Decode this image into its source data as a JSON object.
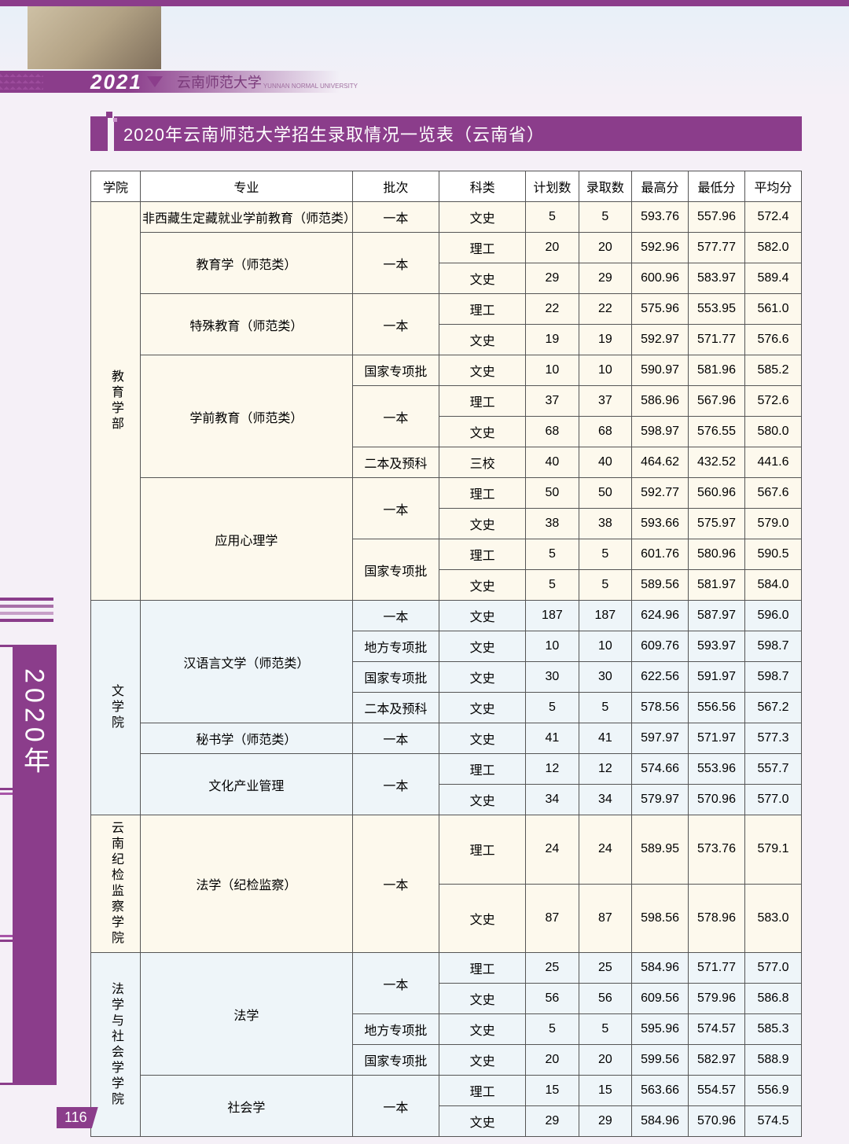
{
  "header": {
    "year_tag": "2021",
    "university": "云南师范大学",
    "sub": "YUNNAN NORMAL UNIVERSITY"
  },
  "title": "2020年云南师范大学招生录取情况一览表（云南省）",
  "side_label": "2020年",
  "page_number": "116",
  "columns": [
    "学院",
    "专业",
    "批次",
    "科类",
    "计划数",
    "录取数",
    "最高分",
    "最低分",
    "平均分"
  ],
  "bg": {
    "edu": "#fdf9ed",
    "lit": "#eef5f9",
    "disc": "#fdf9ed",
    "law": "#eef5f9"
  },
  "groups": [
    {
      "college": "教育学部",
      "bgkey": "edu",
      "majors": [
        {
          "name": "非西藏生定藏就业学前教育（师范类）",
          "batches": [
            {
              "batch": "一本",
              "cats": [
                {
                  "cat": "文史",
                  "plan": 5,
                  "admit": 5,
                  "max": "593.76",
                  "min": "557.96",
                  "avg": "572.4"
                }
              ]
            }
          ]
        },
        {
          "name": "教育学（师范类）",
          "batches": [
            {
              "batch": "一本",
              "cats": [
                {
                  "cat": "理工",
                  "plan": 20,
                  "admit": 20,
                  "max": "592.96",
                  "min": "577.77",
                  "avg": "582.0"
                },
                {
                  "cat": "文史",
                  "plan": 29,
                  "admit": 29,
                  "max": "600.96",
                  "min": "583.97",
                  "avg": "589.4"
                }
              ]
            }
          ]
        },
        {
          "name": "特殊教育（师范类）",
          "batches": [
            {
              "batch": "一本",
              "cats": [
                {
                  "cat": "理工",
                  "plan": 22,
                  "admit": 22,
                  "max": "575.96",
                  "min": "553.95",
                  "avg": "561.0"
                },
                {
                  "cat": "文史",
                  "plan": 19,
                  "admit": 19,
                  "max": "592.97",
                  "min": "571.77",
                  "avg": "576.6"
                }
              ]
            }
          ]
        },
        {
          "name": "学前教育（师范类）",
          "batches": [
            {
              "batch": "国家专项批",
              "cats": [
                {
                  "cat": "文史",
                  "plan": 10,
                  "admit": 10,
                  "max": "590.97",
                  "min": "581.96",
                  "avg": "585.2"
                }
              ]
            },
            {
              "batch": "一本",
              "cats": [
                {
                  "cat": "理工",
                  "plan": 37,
                  "admit": 37,
                  "max": "586.96",
                  "min": "567.96",
                  "avg": "572.6"
                },
                {
                  "cat": "文史",
                  "plan": 68,
                  "admit": 68,
                  "max": "598.97",
                  "min": "576.55",
                  "avg": "580.0"
                }
              ]
            },
            {
              "batch": "二本及预科",
              "cats": [
                {
                  "cat": "三校",
                  "plan": 40,
                  "admit": 40,
                  "max": "464.62",
                  "min": "432.52",
                  "avg": "441.6"
                }
              ]
            }
          ]
        },
        {
          "name": "应用心理学",
          "batches": [
            {
              "batch": "一本",
              "cats": [
                {
                  "cat": "理工",
                  "plan": 50,
                  "admit": 50,
                  "max": "592.77",
                  "min": "560.96",
                  "avg": "567.6"
                },
                {
                  "cat": "文史",
                  "plan": 38,
                  "admit": 38,
                  "max": "593.66",
                  "min": "575.97",
                  "avg": "579.0"
                }
              ]
            },
            {
              "batch": "国家专项批",
              "cats": [
                {
                  "cat": "理工",
                  "plan": 5,
                  "admit": 5,
                  "max": "601.76",
                  "min": "580.96",
                  "avg": "590.5"
                },
                {
                  "cat": "文史",
                  "plan": 5,
                  "admit": 5,
                  "max": "589.56",
                  "min": "581.97",
                  "avg": "584.0"
                }
              ]
            }
          ]
        }
      ]
    },
    {
      "college": "文学院",
      "bgkey": "lit",
      "majors": [
        {
          "name": "汉语言文学（师范类）",
          "batches": [
            {
              "batch": "一本",
              "cats": [
                {
                  "cat": "文史",
                  "plan": 187,
                  "admit": 187,
                  "max": "624.96",
                  "min": "587.97",
                  "avg": "596.0"
                }
              ]
            },
            {
              "batch": "地方专项批",
              "cats": [
                {
                  "cat": "文史",
                  "plan": 10,
                  "admit": 10,
                  "max": "609.76",
                  "min": "593.97",
                  "avg": "598.7"
                }
              ]
            },
            {
              "batch": "国家专项批",
              "cats": [
                {
                  "cat": "文史",
                  "plan": 30,
                  "admit": 30,
                  "max": "622.56",
                  "min": "591.97",
                  "avg": "598.7"
                }
              ]
            },
            {
              "batch": "二本及预科",
              "cats": [
                {
                  "cat": "文史",
                  "plan": 5,
                  "admit": 5,
                  "max": "578.56",
                  "min": "556.56",
                  "avg": "567.2"
                }
              ]
            }
          ]
        },
        {
          "name": "秘书学（师范类）",
          "batches": [
            {
              "batch": "一本",
              "cats": [
                {
                  "cat": "文史",
                  "plan": 41,
                  "admit": 41,
                  "max": "597.97",
                  "min": "571.97",
                  "avg": "577.3"
                }
              ]
            }
          ]
        },
        {
          "name": "文化产业管理",
          "batches": [
            {
              "batch": "一本",
              "cats": [
                {
                  "cat": "理工",
                  "plan": 12,
                  "admit": 12,
                  "max": "574.66",
                  "min": "553.96",
                  "avg": "557.7"
                },
                {
                  "cat": "文史",
                  "plan": 34,
                  "admit": 34,
                  "max": "579.97",
                  "min": "570.96",
                  "avg": "577.0"
                }
              ]
            }
          ]
        }
      ]
    },
    {
      "college": "云南纪检监察学院",
      "bgkey": "disc",
      "majors": [
        {
          "name": "法学（纪检监察）",
          "batches": [
            {
              "batch": "一本",
              "cats": [
                {
                  "cat": "理工",
                  "plan": 24,
                  "admit": 24,
                  "max": "589.95",
                  "min": "573.76",
                  "avg": "579.1"
                },
                {
                  "cat": "文史",
                  "plan": 87,
                  "admit": 87,
                  "max": "598.56",
                  "min": "578.96",
                  "avg": "583.0"
                }
              ]
            }
          ]
        }
      ]
    },
    {
      "college": "法学与社会学学院",
      "bgkey": "law",
      "majors": [
        {
          "name": "法学",
          "batches": [
            {
              "batch": "一本",
              "cats": [
                {
                  "cat": "理工",
                  "plan": 25,
                  "admit": 25,
                  "max": "584.96",
                  "min": "571.77",
                  "avg": "577.0"
                },
                {
                  "cat": "文史",
                  "plan": 56,
                  "admit": 56,
                  "max": "609.56",
                  "min": "579.96",
                  "avg": "586.8"
                }
              ]
            },
            {
              "batch": "地方专项批",
              "cats": [
                {
                  "cat": "文史",
                  "plan": 5,
                  "admit": 5,
                  "max": "595.96",
                  "min": "574.57",
                  "avg": "585.3"
                }
              ]
            },
            {
              "batch": "国家专项批",
              "cats": [
                {
                  "cat": "文史",
                  "plan": 20,
                  "admit": 20,
                  "max": "599.56",
                  "min": "582.97",
                  "avg": "588.9"
                }
              ]
            }
          ]
        },
        {
          "name": "社会学",
          "batches": [
            {
              "batch": "一本",
              "cats": [
                {
                  "cat": "理工",
                  "plan": 15,
                  "admit": 15,
                  "max": "563.66",
                  "min": "554.57",
                  "avg": "556.9"
                },
                {
                  "cat": "文史",
                  "plan": 29,
                  "admit": 29,
                  "max": "584.96",
                  "min": "570.96",
                  "avg": "574.5"
                }
              ]
            }
          ]
        }
      ]
    }
  ]
}
